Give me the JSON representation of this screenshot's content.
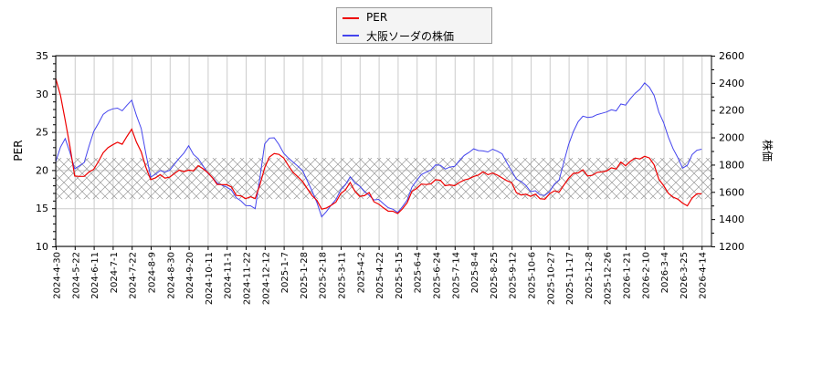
{
  "legend": {
    "items": [
      {
        "label": "PER",
        "color": "#ee0000"
      },
      {
        "label": "大阪ソーダの株価",
        "color": "#4444ee"
      }
    ]
  },
  "chart_data": {
    "type": "line",
    "title": "",
    "xlabel": "",
    "ylabel_left": "PER",
    "ylabel_right": "株価",
    "ylim_left": [
      10,
      35
    ],
    "ylim_right": [
      1200,
      2600
    ],
    "yticks_left": [
      10,
      15,
      20,
      25,
      30,
      35
    ],
    "yticks_right": [
      1200,
      1400,
      1600,
      1800,
      2000,
      2200,
      2400,
      2600
    ],
    "grid": true,
    "legend_position": "top-center",
    "shaded_band_per": [
      16.2,
      21.6
    ],
    "categories": [
      "2024-4-30",
      "2024-5-22",
      "2024-6-11",
      "2024-7-1",
      "2024-7-22",
      "2024-8-9",
      "2024-8-30",
      "2024-9-20",
      "2024-10-11",
      "2024-11-1",
      "2024-11-22",
      "2024-12-12",
      "2025-1-7",
      "2025-1-28",
      "2025-2-18",
      "2025-3-11",
      "2025-4-2",
      "2025-4-22",
      "2025-5-15",
      "2025-6-4",
      "2025-6-24",
      "2025-7-14",
      "2025-8-4",
      "2025-8-25",
      "2025-9-12",
      "2025-10-6",
      "2025-10-27",
      "2025-11-17",
      "2025-12-8",
      "2025-12-26",
      "2026-1-21",
      "2026-2-10",
      "2026-3-4",
      "2026-3-25",
      "2026-4-14"
    ],
    "series": [
      {
        "name": "PER",
        "axis": "left",
        "color": "#ee0000",
        "values": [
          32.0,
          19.0,
          20.5,
          23.8,
          24.8,
          18.3,
          19.6,
          20.5,
          19.5,
          17.5,
          16.5,
          20.5,
          21.5,
          18.6,
          15.2,
          16.8,
          16.5,
          15.9,
          14.8,
          17.5,
          18.3,
          18.5,
          19.5,
          19.3,
          17.8,
          17.0,
          16.6,
          18.5,
          19.8,
          20.2,
          20.4,
          21.8,
          18.0,
          15.8,
          16.8
        ],
        "mid_values": [
          26.5,
          18.8,
          22.3,
          23.5,
          22.0,
          19.0,
          20.3,
          20.0,
          18.0,
          17.0,
          16.6,
          22.0,
          19.5,
          17.0,
          15.8,
          17.9,
          16.7,
          15.0,
          16.2,
          18.0,
          18.5,
          19.0,
          19.3,
          18.5,
          17.3,
          16.8,
          16.9,
          19.5,
          20.0,
          20.5,
          21.0,
          20.5,
          16.8,
          16.0,
          17.0
        ]
      },
      {
        "name": "大阪ソーダの株価",
        "axis": "right",
        "color": "#4444ee",
        "values": [
          1820,
          1760,
          2060,
          2230,
          2250,
          1690,
          1780,
          1960,
          1730,
          1610,
          1510,
          1960,
          1880,
          1760,
          1430,
          1610,
          1640,
          1560,
          1470,
          1680,
          1780,
          1810,
          1930,
          1900,
          1730,
          1620,
          1590,
          1930,
          2170,
          2200,
          2230,
          2400,
          2110,
          1780,
          1910
        ],
        "mid_values": [
          1990,
          1800,
          2170,
          2200,
          2050,
          1740,
          1860,
          1820,
          1660,
          1570,
          1490,
          1990,
          1810,
          1620,
          1520,
          1690,
          1560,
          1500,
          1560,
          1740,
          1790,
          1880,
          1880,
          1860,
          1700,
          1600,
          1680,
          2110,
          2180,
          2210,
          2300,
          2300,
          1930,
          1860,
          1940
        ]
      }
    ]
  }
}
